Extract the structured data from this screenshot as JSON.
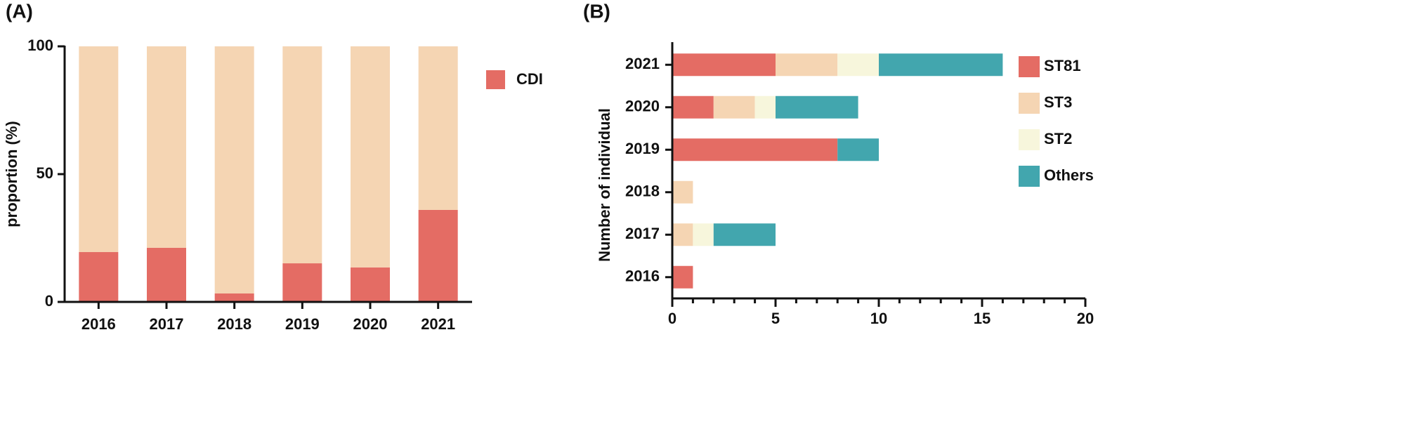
{
  "chart_data": [
    {
      "type": "stacked-bar",
      "panel": "(A)",
      "y_label": "proportion (%)",
      "categories": [
        "2016",
        "2017",
        "2018",
        "2019",
        "2020",
        "2021"
      ],
      "series": [
        {
          "name": "CDI",
          "color": "#e46c64",
          "values": [
            19.5,
            21.2,
            3.3,
            15.1,
            13.5,
            36
          ]
        },
        {
          "color": "#f5d5b3",
          "values": [
            80.5,
            78.8,
            96.7,
            84.9,
            86.5,
            64
          ]
        }
      ],
      "ylim": [
        0,
        100
      ],
      "yticks": [
        0,
        50,
        100
      ],
      "legend": "right"
    },
    {
      "type": "stacked-hbar",
      "panel": "(B)",
      "y_label": "Number of individual",
      "categories": [
        "2016",
        "2017",
        "2018",
        "2019",
        "2020",
        "2021"
      ],
      "series": [
        {
          "name": "ST81",
          "color": "#e46c64",
          "values": [
            1,
            0,
            0,
            8,
            2,
            5
          ]
        },
        {
          "name": "ST3",
          "color": "#f5d5b3",
          "values": [
            0,
            1,
            1,
            0,
            2,
            3
          ]
        },
        {
          "name": "ST2",
          "color": "#f7f6dc",
          "values": [
            0,
            1,
            0,
            0,
            1,
            2
          ]
        },
        {
          "name": "Others",
          "color": "#42a6ae",
          "values": [
            0,
            3,
            0,
            2,
            4,
            6
          ]
        }
      ],
      "xlim": [
        0,
        20
      ],
      "xticks": [
        0,
        5,
        10,
        15,
        20
      ],
      "xminorticks": [
        1,
        2,
        3,
        4,
        6,
        7,
        8,
        9,
        11,
        12,
        13,
        14,
        16,
        17,
        18,
        19
      ],
      "legend": "right"
    }
  ]
}
